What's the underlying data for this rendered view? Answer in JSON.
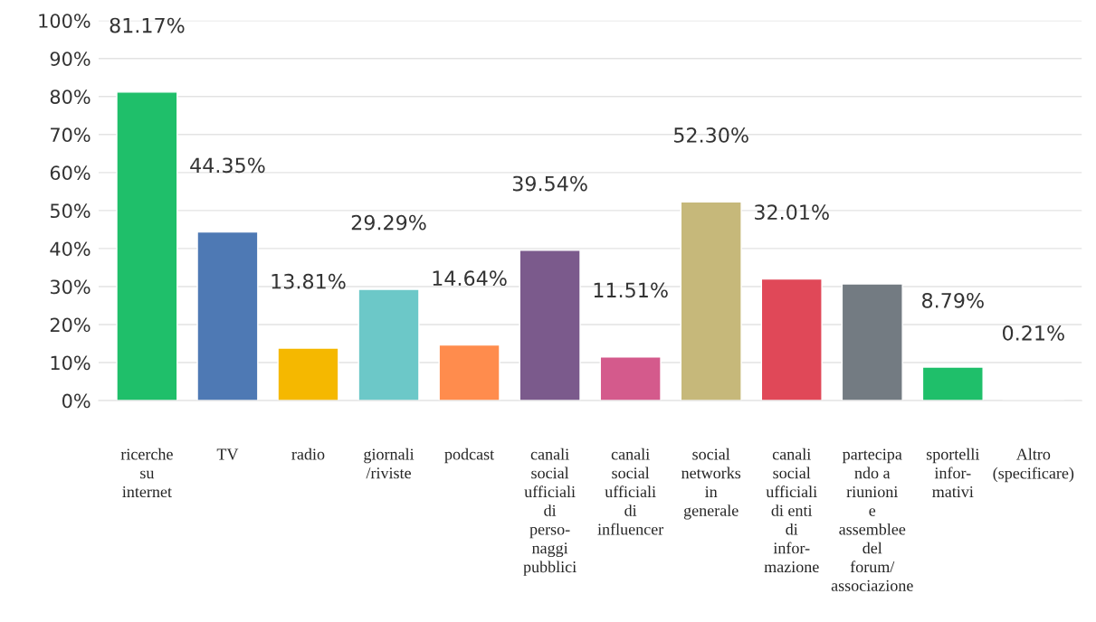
{
  "chart_data": {
    "type": "bar",
    "categories": [
      "ricerche\nsu\ninternet",
      "TV",
      "radio",
      "giornali\n/riviste",
      "podcast",
      "canali\nsocial\nufficiali\ndi\nperso-\nnaggi\npubblici",
      "canali\nsocial\nufficiali\ndi\ninfluencer",
      "social\nnetworks\nin\ngenerale",
      "canali\nsocial\nufficiali\ndi enti\ndi\ninfor-\nmazione",
      "partecipa\nndo a\nriunioni\ne\nassemblee\ndel\nforum/\nassociazione",
      "sportelli\ninfor-\nmativi",
      "Altro\n(specificare)"
    ],
    "values": [
      81.17,
      44.35,
      13.81,
      29.29,
      14.64,
      39.54,
      11.51,
      52.3,
      32.01,
      30.7,
      8.79,
      0.21
    ],
    "colors": [
      "#1fbf6a",
      "#4e79b4",
      "#f5b800",
      "#6cc8c8",
      "#ff8c4d",
      "#7b5a8c",
      "#d45a8c",
      "#c6b87a",
      "#e04858",
      "#737b82",
      "#1fbf6a",
      "#4e79b4"
    ],
    "value_labels": [
      "81.17%",
      "44.35%",
      "13.81%",
      "29.29%",
      "14.64%",
      "39.54%",
      "11.51%",
      "52.30%",
      "32.01%",
      null,
      "8.79%",
      "0.21%"
    ],
    "ylim": [
      0,
      100
    ],
    "yticks": [
      {
        "value": 0,
        "label": "0%"
      },
      {
        "value": 10,
        "label": "10%"
      },
      {
        "value": 20,
        "label": "20%"
      },
      {
        "value": 30,
        "label": "30%"
      },
      {
        "value": 40,
        "label": "40%"
      },
      {
        "value": 50,
        "label": "50%"
      },
      {
        "value": 60,
        "label": "60%"
      },
      {
        "value": 70,
        "label": "70%"
      },
      {
        "value": 80,
        "label": "80%"
      },
      {
        "value": 90,
        "label": "90%"
      },
      {
        "value": 100,
        "label": "100%"
      }
    ],
    "grid": "y",
    "legend": false
  }
}
